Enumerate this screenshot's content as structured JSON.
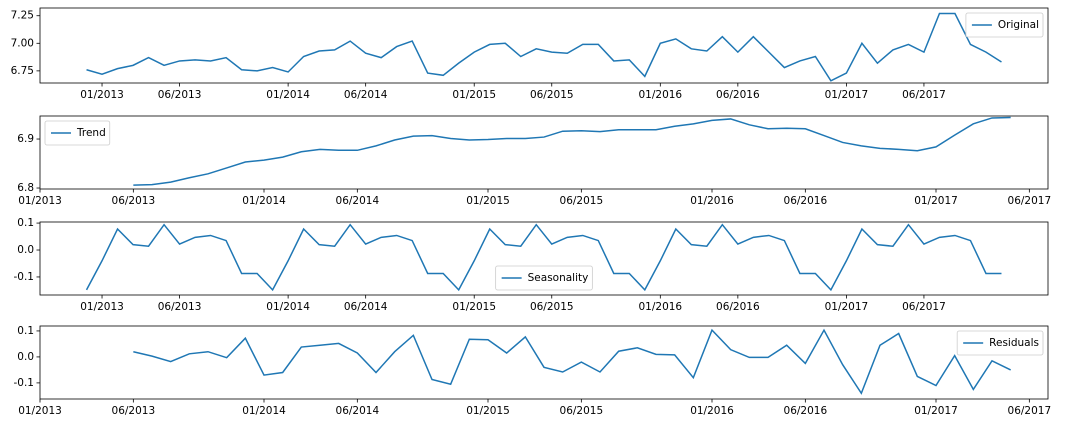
{
  "chart_data": [
    {
      "type": "line",
      "legend": "upper right",
      "x": [
        "2012-12",
        "2013-01",
        "2013-02",
        "2013-03",
        "2013-04",
        "2013-05",
        "2013-06",
        "2013-07",
        "2013-08",
        "2013-09",
        "2013-10",
        "2013-11",
        "2013-12",
        "2014-01",
        "2014-02",
        "2014-03",
        "2014-04",
        "2014-05",
        "2014-06",
        "2014-07",
        "2014-08",
        "2014-09",
        "2014-10",
        "2014-11",
        "2014-12",
        "2015-01",
        "2015-02",
        "2015-03",
        "2015-04",
        "2015-05",
        "2015-06",
        "2015-07",
        "2015-08",
        "2015-09",
        "2015-10",
        "2015-11",
        "2015-12",
        "2016-01",
        "2016-02",
        "2016-03",
        "2016-04",
        "2016-05",
        "2016-06",
        "2016-07",
        "2016-08",
        "2016-09",
        "2016-10",
        "2016-11",
        "2016-12",
        "2017-01",
        "2017-02",
        "2017-03",
        "2017-04",
        "2017-05",
        "2017-06",
        "2017-07",
        "2017-08",
        "2017-09",
        "2017-10",
        "2017-11"
      ],
      "series": [
        {
          "name": "Original",
          "color": "#1f77b4",
          "values": [
            6.76,
            6.72,
            6.77,
            6.8,
            6.87,
            6.8,
            6.84,
            6.85,
            6.84,
            6.87,
            6.76,
            6.75,
            6.78,
            6.74,
            6.88,
            6.93,
            6.94,
            7.02,
            6.91,
            6.87,
            6.97,
            7.02,
            6.73,
            6.71,
            6.82,
            6.92,
            6.99,
            7.0,
            6.88,
            6.95,
            6.92,
            6.91,
            6.99,
            6.99,
            6.84,
            6.85,
            6.7,
            7.0,
            7.04,
            6.95,
            6.93,
            7.06,
            6.92,
            7.06,
            6.92,
            6.78,
            6.84,
            6.88,
            6.66,
            6.73,
            7.0,
            6.82,
            6.94,
            6.99,
            6.92,
            7.27,
            7.27,
            6.99,
            6.92,
            6.83
          ]
        }
      ],
      "xlim": [
        "2012-09",
        "2018-02"
      ],
      "xticks": [
        {
          "value": "2013-01",
          "label": "01/2013"
        },
        {
          "value": "2013-06",
          "label": "06/2013"
        },
        {
          "value": "2014-01",
          "label": "01/2014"
        },
        {
          "value": "2014-06",
          "label": "06/2014"
        },
        {
          "value": "2015-01",
          "label": "01/2015"
        },
        {
          "value": "2015-06",
          "label": "06/2015"
        },
        {
          "value": "2016-01",
          "label": "01/2016"
        },
        {
          "value": "2016-06",
          "label": "06/2016"
        },
        {
          "value": "2017-01",
          "label": "01/2017"
        },
        {
          "value": "2017-06",
          "label": "06/2017"
        }
      ],
      "ylim": [
        6.64,
        7.32
      ],
      "yticks": [
        6.75,
        {
          "value": 7,
          "label": "7.00"
        },
        7.25
      ]
    },
    {
      "type": "line",
      "legend": "upper left",
      "x": [
        "2013-06",
        "2013-07",
        "2013-08",
        "2013-09",
        "2013-10",
        "2013-11",
        "2013-12",
        "2014-01",
        "2014-02",
        "2014-03",
        "2014-04",
        "2014-05",
        "2014-06",
        "2014-07",
        "2014-08",
        "2014-09",
        "2014-10",
        "2014-11",
        "2014-12",
        "2015-01",
        "2015-02",
        "2015-03",
        "2015-04",
        "2015-05",
        "2015-06",
        "2015-07",
        "2015-08",
        "2015-09",
        "2015-10",
        "2015-11",
        "2015-12",
        "2016-01",
        "2016-02",
        "2016-03",
        "2016-04",
        "2016-05",
        "2016-06",
        "2016-07",
        "2016-08",
        "2016-09",
        "2016-10",
        "2016-11",
        "2016-12",
        "2017-01",
        "2017-02",
        "2017-03",
        "2017-04",
        "2017-05"
      ],
      "series": [
        {
          "name": "Trend",
          "color": "#1f77b4",
          "values": [
            6.806,
            6.807,
            6.812,
            6.821,
            6.829,
            6.841,
            6.853,
            6.857,
            6.863,
            6.874,
            6.879,
            6.877,
            6.877,
            6.886,
            6.898,
            6.906,
            6.907,
            6.901,
            6.898,
            6.899,
            6.901,
            6.901,
            6.904,
            6.916,
            6.917,
            6.915,
            6.919,
            6.919,
            6.919,
            6.926,
            6.931,
            6.938,
            6.941,
            6.929,
            6.921,
            6.922,
            6.921,
            6.907,
            6.893,
            6.886,
            6.881,
            6.879,
            6.876,
            6.884,
            6.908,
            6.931,
            6.943,
            6.944
          ]
        }
      ],
      "xlim": [
        "2013-01",
        "2017-07"
      ],
      "xticks": [
        {
          "value": "2013-01",
          "label": "01/2013"
        },
        {
          "value": "2013-06",
          "label": "06/2013"
        },
        {
          "value": "2014-01",
          "label": "01/2014"
        },
        {
          "value": "2014-06",
          "label": "06/2014"
        },
        {
          "value": "2015-01",
          "label": "01/2015"
        },
        {
          "value": "2015-06",
          "label": "06/2015"
        },
        {
          "value": "2016-01",
          "label": "01/2016"
        },
        {
          "value": "2016-06",
          "label": "06/2016"
        },
        {
          "value": "2017-01",
          "label": "01/2017"
        },
        {
          "value": "2017-06",
          "label": "06/2017"
        }
      ],
      "ylim": [
        6.798,
        6.947
      ],
      "yticks": [
        6.8,
        6.9
      ]
    },
    {
      "type": "line",
      "legend": "lower center",
      "x": [
        "2012-12",
        "2013-01",
        "2013-02",
        "2013-03",
        "2013-04",
        "2013-05",
        "2013-06",
        "2013-07",
        "2013-08",
        "2013-09",
        "2013-10",
        "2013-11",
        "2013-12",
        "2014-01",
        "2014-02",
        "2014-03",
        "2014-04",
        "2014-05",
        "2014-06",
        "2014-07",
        "2014-08",
        "2014-09",
        "2014-10",
        "2014-11",
        "2014-12",
        "2015-01",
        "2015-02",
        "2015-03",
        "2015-04",
        "2015-05",
        "2015-06",
        "2015-07",
        "2015-08",
        "2015-09",
        "2015-10",
        "2015-11",
        "2015-12",
        "2016-01",
        "2016-02",
        "2016-03",
        "2016-04",
        "2016-05",
        "2016-06",
        "2016-07",
        "2016-08",
        "2016-09",
        "2016-10",
        "2016-11",
        "2016-12",
        "2017-01",
        "2017-02",
        "2017-03",
        "2017-04",
        "2017-05",
        "2017-06",
        "2017-07",
        "2017-08",
        "2017-09",
        "2017-10",
        "2017-11"
      ],
      "series": [
        {
          "name": "Seasonality",
          "color": "#1f77b4",
          "values": [
            -0.148,
            -0.04,
            0.078,
            0.02,
            0.014,
            0.094,
            0.022,
            0.047,
            0.054,
            0.035,
            -0.087,
            -0.087,
            -0.148,
            -0.04,
            0.078,
            0.02,
            0.014,
            0.094,
            0.022,
            0.047,
            0.054,
            0.035,
            -0.087,
            -0.087,
            -0.148,
            -0.04,
            0.078,
            0.02,
            0.014,
            0.094,
            0.022,
            0.047,
            0.054,
            0.035,
            -0.087,
            -0.087,
            -0.148,
            -0.04,
            0.078,
            0.02,
            0.014,
            0.094,
            0.022,
            0.047,
            0.054,
            0.035,
            -0.087,
            -0.087,
            -0.148,
            -0.04,
            0.078,
            0.02,
            0.014,
            0.094,
            0.022,
            0.047,
            0.054,
            0.035,
            -0.087,
            -0.087
          ]
        }
      ],
      "xlim": [
        "2012-09",
        "2018-02"
      ],
      "xticks": [
        {
          "value": "2013-01",
          "label": "01/2013"
        },
        {
          "value": "2013-06",
          "label": "06/2013"
        },
        {
          "value": "2014-01",
          "label": "01/2014"
        },
        {
          "value": "2014-06",
          "label": "06/2014"
        },
        {
          "value": "2015-01",
          "label": "01/2015"
        },
        {
          "value": "2015-06",
          "label": "06/2015"
        },
        {
          "value": "2016-01",
          "label": "01/2016"
        },
        {
          "value": "2016-06",
          "label": "06/2016"
        },
        {
          "value": "2017-01",
          "label": "01/2017"
        },
        {
          "value": "2017-06",
          "label": "06/2017"
        }
      ],
      "ylim": [
        -0.167,
        0.104
      ],
      "yticks": [
        -0.1,
        {
          "value": 0,
          "label": "0.0"
        },
        0.1
      ]
    },
    {
      "type": "line",
      "legend": "upper right",
      "x": [
        "2013-06",
        "2013-07",
        "2013-08",
        "2013-09",
        "2013-10",
        "2013-11",
        "2013-12",
        "2014-01",
        "2014-02",
        "2014-03",
        "2014-04",
        "2014-05",
        "2014-06",
        "2014-07",
        "2014-08",
        "2014-09",
        "2014-10",
        "2014-11",
        "2014-12",
        "2015-01",
        "2015-02",
        "2015-03",
        "2015-04",
        "2015-05",
        "2015-06",
        "2015-07",
        "2015-08",
        "2015-09",
        "2015-10",
        "2015-11",
        "2015-12",
        "2016-01",
        "2016-02",
        "2016-03",
        "2016-04",
        "2016-05",
        "2016-06",
        "2016-07",
        "2016-08",
        "2016-09",
        "2016-10",
        "2016-11",
        "2016-12",
        "2017-01",
        "2017-02",
        "2017-03",
        "2017-04",
        "2017-05"
      ],
      "series": [
        {
          "name": "Residuals",
          "color": "#1f77b4",
          "values": [
            0.02,
            0.003,
            -0.018,
            0.012,
            0.02,
            -0.003,
            0.072,
            -0.07,
            -0.06,
            0.038,
            0.045,
            0.052,
            0.015,
            -0.06,
            0.02,
            0.083,
            -0.087,
            -0.105,
            0.068,
            0.066,
            0.015,
            0.077,
            -0.04,
            -0.058,
            -0.02,
            -0.058,
            0.022,
            0.035,
            0.01,
            0.008,
            -0.08,
            0.103,
            0.028,
            -0.002,
            -0.002,
            0.045,
            -0.025,
            0.103,
            -0.03,
            -0.14,
            0.045,
            0.09,
            -0.075,
            -0.11,
            0.005,
            -0.125,
            -0.015,
            -0.05
          ]
        }
      ],
      "xlim": [
        "2013-01",
        "2017-07"
      ],
      "xticks": [
        {
          "value": "2013-01",
          "label": "01/2013"
        },
        {
          "value": "2013-06",
          "label": "06/2013"
        },
        {
          "value": "2014-01",
          "label": "01/2014"
        },
        {
          "value": "2014-06",
          "label": "06/2014"
        },
        {
          "value": "2015-01",
          "label": "01/2015"
        },
        {
          "value": "2015-06",
          "label": "06/2015"
        },
        {
          "value": "2016-01",
          "label": "01/2016"
        },
        {
          "value": "2016-06",
          "label": "06/2016"
        },
        {
          "value": "2017-01",
          "label": "01/2017"
        },
        {
          "value": "2017-06",
          "label": "06/2017"
        }
      ],
      "ylim": [
        -0.162,
        0.119
      ],
      "yticks": [
        -0.1,
        {
          "value": 0,
          "label": "0.0"
        },
        0.1
      ]
    }
  ]
}
